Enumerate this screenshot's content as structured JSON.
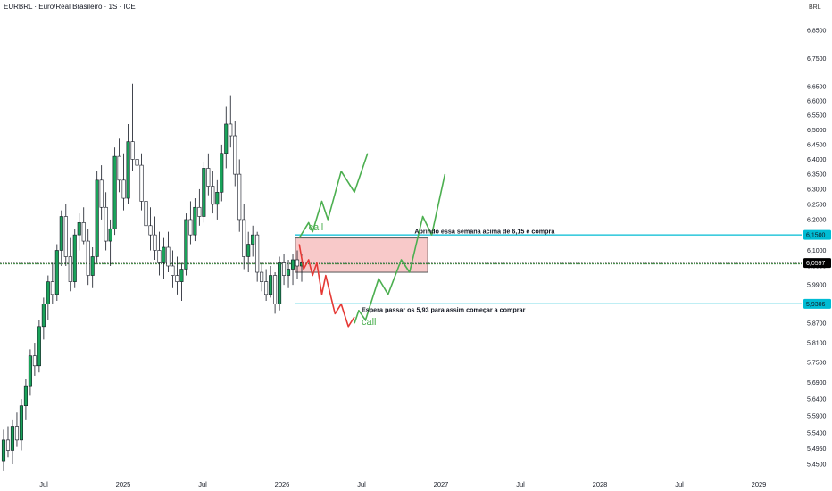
{
  "header": {
    "symbol_title": "EURBRL · Euro/Real Brasileiro · 1S · ICE",
    "currency": "BRL"
  },
  "colors": {
    "up": "#089981",
    "down": "#f23645",
    "wick": "#131722",
    "candle_up_fill": "#1aa35a",
    "candle_down_fill": "#ffffff",
    "level_line": "#00bcd4",
    "ma_line": "#2e7d32",
    "zone_fill": "#f8c9c9",
    "zone_border": "#555555",
    "path_green": "#4caf50",
    "path_red": "#e53935",
    "last_price_bg": "#000000"
  },
  "chart_data": {
    "type": "candlestick",
    "timeframe": "1S",
    "y_scale": "log",
    "y_axis_ticks": [
      "6,8500",
      "6,7500",
      "6,6500",
      "6,6000",
      "6,5500",
      "6,5000",
      "6,4500",
      "6,4000",
      "6,3500",
      "6,3000",
      "6,2500",
      "6,2000",
      "6,1500",
      "6,1000",
      "6,0500",
      "5,9900",
      "5,9300",
      "5,8700",
      "5,8100",
      "5,7500",
      "5,6900",
      "5,6400",
      "5,5900",
      "5,5400",
      "5,4950",
      "5,4500"
    ],
    "x_axis_ticks": [
      "Jul",
      "2025",
      "Jul",
      "2026",
      "Jul",
      "2027",
      "Jul",
      "2028",
      "Jul",
      "2029"
    ],
    "ylim": [
      5.42,
      6.92
    ],
    "price_labels": [
      {
        "text": "6,1500",
        "value": 6.15,
        "style": "level"
      },
      {
        "text": "6,0597",
        "value": 6.0597,
        "style": "last"
      },
      {
        "text": "5,9306",
        "value": 5.9306,
        "style": "level"
      }
    ],
    "horizontal_levels": [
      {
        "value": 6.15,
        "x_start_date": "2026-02"
      },
      {
        "value": 5.9306,
        "x_start_date": "2026-02"
      }
    ],
    "ma_line_value": 6.0597,
    "zone": {
      "x_start": "2026-02",
      "x_end": "2026-12",
      "y_top": 6.14,
      "y_bottom": 6.03
    },
    "annotations": [
      {
        "text": "Abrindo essa semana acima de 6,15 é compra",
        "date": "2026-11",
        "value": 6.155
      },
      {
        "text": "Espera passar os 5,93 para assim começar a comprar",
        "date": "2026-07",
        "value": 5.905
      },
      {
        "text": "call",
        "date": "2026-03",
        "value": 6.165
      },
      {
        "text": "call",
        "date": "2026-07",
        "value": 5.865
      }
    ],
    "projection_paths": {
      "green_upper": [
        [
          "2026-02-10",
          6.14
        ],
        [
          "2026-03-01",
          6.19
        ],
        [
          "2026-03-10",
          6.16
        ],
        [
          "2026-04-01",
          6.26
        ],
        [
          "2026-04-15",
          6.2
        ],
        [
          "2026-05-15",
          6.36
        ],
        [
          "2026-06-15",
          6.29
        ],
        [
          "2026-07-15",
          6.42
        ]
      ],
      "red_down": [
        [
          "2026-02-10",
          6.12
        ],
        [
          "2026-02-20",
          6.04
        ],
        [
          "2026-03-01",
          6.07
        ],
        [
          "2026-03-10",
          6.02
        ],
        [
          "2026-03-20",
          6.06
        ],
        [
          "2026-04-01",
          5.96
        ],
        [
          "2026-04-10",
          6.02
        ],
        [
          "2026-05-01",
          5.9
        ],
        [
          "2026-05-15",
          5.93
        ],
        [
          "2026-06-01",
          5.86
        ],
        [
          "2026-06-15",
          5.89
        ]
      ],
      "green_lower": [
        [
          "2026-06-15",
          5.87
        ],
        [
          "2026-06-25",
          5.91
        ],
        [
          "2026-07-10",
          5.88
        ],
        [
          "2026-08-10",
          6.01
        ],
        [
          "2026-09-01",
          5.96
        ],
        [
          "2026-10-01",
          6.07
        ],
        [
          "2026-10-20",
          6.03
        ],
        [
          "2026-11-20",
          6.21
        ],
        [
          "2026-12-10",
          6.15
        ],
        [
          "2027-01-10",
          6.35
        ]
      ]
    },
    "candles": [
      {
        "o": 5.46,
        "h": 5.55,
        "l": 5.43,
        "c": 5.52
      },
      {
        "o": 5.52,
        "h": 5.56,
        "l": 5.47,
        "c": 5.49
      },
      {
        "o": 5.49,
        "h": 5.58,
        "l": 5.45,
        "c": 5.56
      },
      {
        "o": 5.56,
        "h": 5.6,
        "l": 5.5,
        "c": 5.52
      },
      {
        "o": 5.52,
        "h": 5.64,
        "l": 5.49,
        "c": 5.62
      },
      {
        "o": 5.62,
        "h": 5.7,
        "l": 5.58,
        "c": 5.68
      },
      {
        "o": 5.68,
        "h": 5.79,
        "l": 5.65,
        "c": 5.77
      },
      {
        "o": 5.77,
        "h": 5.81,
        "l": 5.71,
        "c": 5.74
      },
      {
        "o": 5.74,
        "h": 5.88,
        "l": 5.72,
        "c": 5.86
      },
      {
        "o": 5.86,
        "h": 5.95,
        "l": 5.82,
        "c": 5.93
      },
      {
        "o": 5.93,
        "h": 6.02,
        "l": 5.88,
        "c": 6.0
      },
      {
        "o": 6.0,
        "h": 6.06,
        "l": 5.93,
        "c": 5.96
      },
      {
        "o": 5.96,
        "h": 6.12,
        "l": 5.94,
        "c": 6.1
      },
      {
        "o": 6.1,
        "h": 6.23,
        "l": 6.05,
        "c": 6.21
      },
      {
        "o": 6.21,
        "h": 6.25,
        "l": 6.05,
        "c": 6.08
      },
      {
        "o": 6.08,
        "h": 6.14,
        "l": 5.97,
        "c": 6.0
      },
      {
        "o": 6.0,
        "h": 6.17,
        "l": 5.98,
        "c": 6.15
      },
      {
        "o": 6.15,
        "h": 6.22,
        "l": 6.1,
        "c": 6.19
      },
      {
        "o": 6.19,
        "h": 6.24,
        "l": 6.12,
        "c": 6.13
      },
      {
        "o": 6.13,
        "h": 6.17,
        "l": 5.99,
        "c": 6.02
      },
      {
        "o": 6.02,
        "h": 6.11,
        "l": 5.98,
        "c": 6.08
      },
      {
        "o": 6.08,
        "h": 6.36,
        "l": 6.06,
        "c": 6.33
      },
      {
        "o": 6.33,
        "h": 6.38,
        "l": 6.2,
        "c": 6.24
      },
      {
        "o": 6.24,
        "h": 6.29,
        "l": 6.1,
        "c": 6.13
      },
      {
        "o": 6.13,
        "h": 6.2,
        "l": 6.05,
        "c": 6.17
      },
      {
        "o": 6.17,
        "h": 6.44,
        "l": 6.15,
        "c": 6.41
      },
      {
        "o": 6.41,
        "h": 6.47,
        "l": 6.29,
        "c": 6.33
      },
      {
        "o": 6.33,
        "h": 6.42,
        "l": 6.23,
        "c": 6.27
      },
      {
        "o": 6.27,
        "h": 6.52,
        "l": 6.25,
        "c": 6.46
      },
      {
        "o": 6.46,
        "h": 6.66,
        "l": 6.36,
        "c": 6.4
      },
      {
        "o": 6.4,
        "h": 6.58,
        "l": 6.34,
        "c": 6.38
      },
      {
        "o": 6.38,
        "h": 6.42,
        "l": 6.23,
        "c": 6.26
      },
      {
        "o": 6.26,
        "h": 6.32,
        "l": 6.14,
        "c": 6.18
      },
      {
        "o": 6.18,
        "h": 6.24,
        "l": 6.1,
        "c": 6.15
      },
      {
        "o": 6.15,
        "h": 6.21,
        "l": 6.07,
        "c": 6.1
      },
      {
        "o": 6.1,
        "h": 6.16,
        "l": 6.02,
        "c": 6.06
      },
      {
        "o": 6.06,
        "h": 6.14,
        "l": 6.01,
        "c": 6.11
      },
      {
        "o": 6.11,
        "h": 6.16,
        "l": 6.03,
        "c": 6.05
      },
      {
        "o": 6.05,
        "h": 6.1,
        "l": 5.98,
        "c": 6.02
      },
      {
        "o": 6.02,
        "h": 6.08,
        "l": 5.96,
        "c": 6.0
      },
      {
        "o": 6.0,
        "h": 6.06,
        "l": 5.94,
        "c": 6.04
      },
      {
        "o": 6.04,
        "h": 6.22,
        "l": 6.02,
        "c": 6.2
      },
      {
        "o": 6.2,
        "h": 6.26,
        "l": 6.12,
        "c": 6.15
      },
      {
        "o": 6.15,
        "h": 6.27,
        "l": 6.13,
        "c": 6.24
      },
      {
        "o": 6.24,
        "h": 6.3,
        "l": 6.18,
        "c": 6.21
      },
      {
        "o": 6.21,
        "h": 6.39,
        "l": 6.19,
        "c": 6.37
      },
      {
        "o": 6.37,
        "h": 6.42,
        "l": 6.28,
        "c": 6.31
      },
      {
        "o": 6.31,
        "h": 6.36,
        "l": 6.22,
        "c": 6.25
      },
      {
        "o": 6.25,
        "h": 6.33,
        "l": 6.2,
        "c": 6.29
      },
      {
        "o": 6.29,
        "h": 6.45,
        "l": 6.26,
        "c": 6.42
      },
      {
        "o": 6.42,
        "h": 6.58,
        "l": 6.37,
        "c": 6.52
      },
      {
        "o": 6.52,
        "h": 6.62,
        "l": 6.44,
        "c": 6.48
      },
      {
        "o": 6.48,
        "h": 6.53,
        "l": 6.31,
        "c": 6.35
      },
      {
        "o": 6.35,
        "h": 6.4,
        "l": 6.16,
        "c": 6.2
      },
      {
        "o": 6.2,
        "h": 6.25,
        "l": 6.04,
        "c": 6.08
      },
      {
        "o": 6.08,
        "h": 6.16,
        "l": 6.03,
        "c": 6.12
      },
      {
        "o": 6.12,
        "h": 6.18,
        "l": 6.08,
        "c": 6.15
      },
      {
        "o": 6.15,
        "h": 6.16,
        "l": 6.0,
        "c": 6.03
      },
      {
        "o": 6.03,
        "h": 6.06,
        "l": 5.97,
        "c": 6.0
      },
      {
        "o": 6.0,
        "h": 6.04,
        "l": 5.94,
        "c": 5.96
      },
      {
        "o": 5.96,
        "h": 6.05,
        "l": 5.95,
        "c": 6.02
      },
      {
        "o": 6.02,
        "h": 6.03,
        "l": 5.9,
        "c": 5.93
      },
      {
        "o": 5.93,
        "h": 6.08,
        "l": 5.91,
        "c": 6.06
      },
      {
        "o": 6.06,
        "h": 6.09,
        "l": 5.99,
        "c": 6.02
      },
      {
        "o": 6.02,
        "h": 6.07,
        "l": 5.98,
        "c": 6.04
      },
      {
        "o": 6.04,
        "h": 6.09,
        "l": 5.99,
        "c": 6.07
      },
      {
        "o": 6.07,
        "h": 6.1,
        "l": 6.01,
        "c": 6.05
      },
      {
        "o": 6.05,
        "h": 6.09,
        "l": 6.0,
        "c": 6.06
      }
    ]
  }
}
